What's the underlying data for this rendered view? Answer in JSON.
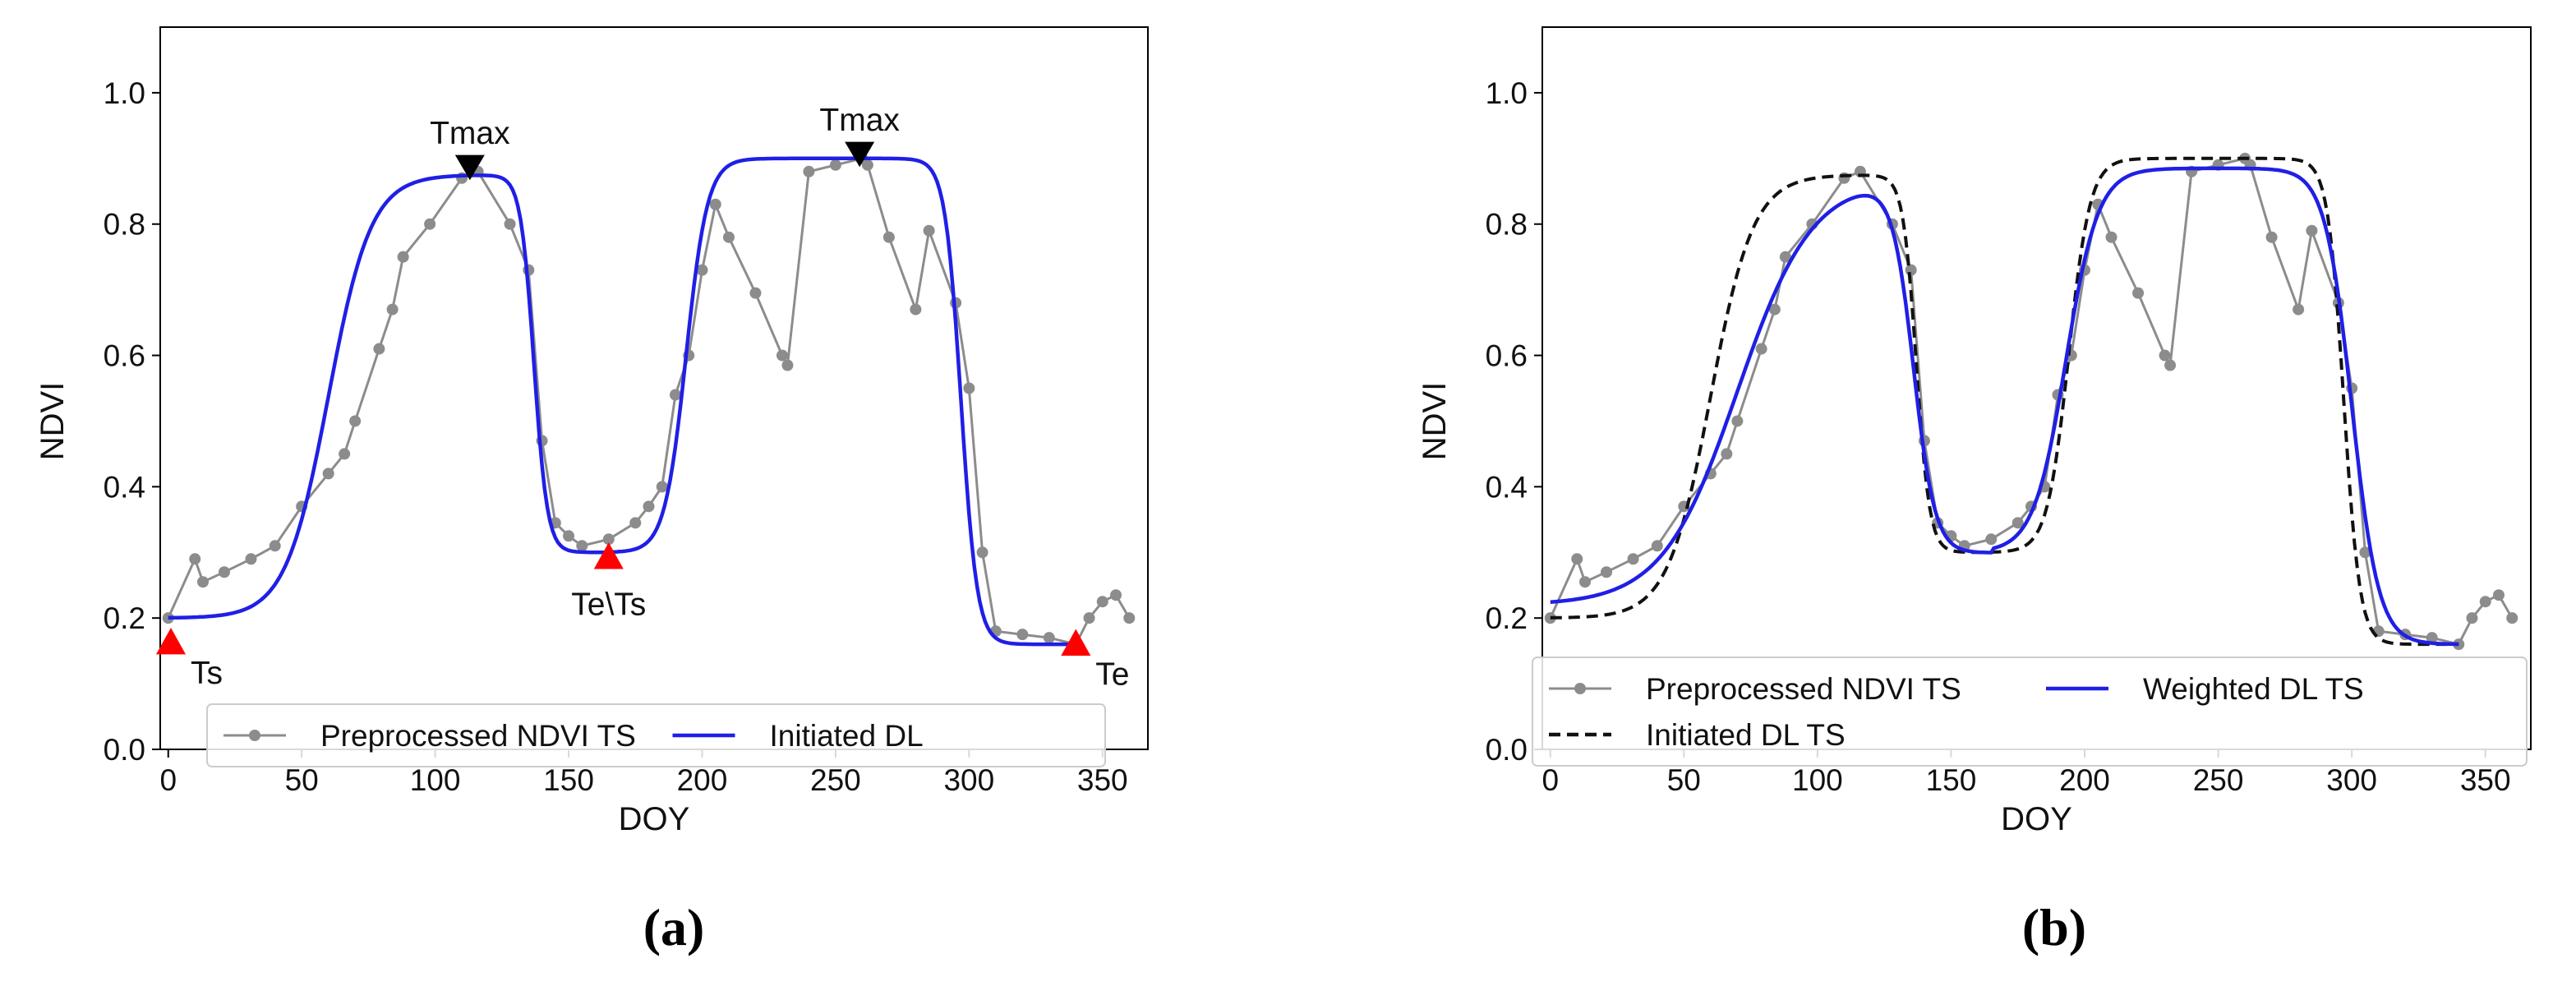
{
  "charts": [
    {
      "type": "line",
      "panel_label": "(a)",
      "xlabel": "DOY",
      "ylabel": "NDVI",
      "xlim": [
        -3,
        367
      ],
      "ylim": [
        0.0,
        1.1
      ],
      "xticks": [
        0,
        50,
        100,
        150,
        200,
        250,
        300,
        350
      ],
      "yticks": [
        0.0,
        0.2,
        0.4,
        0.6,
        0.8,
        1.0
      ],
      "ytick_labels": [
        "0.0",
        "0.2",
        "0.4",
        "0.6",
        "0.8",
        "1.0"
      ],
      "grid": false,
      "legend": {
        "placement": "bottom-center",
        "columns": 2
      },
      "series": [
        {
          "name": "Preprocessed NDVI TS",
          "style": "line-markers",
          "color": "#8c8c8c",
          "x": [
            0,
            10,
            13,
            21,
            31,
            40,
            50,
            60,
            66,
            70,
            79,
            84,
            88,
            98,
            110,
            116,
            128,
            135,
            140,
            145,
            150,
            155,
            165,
            175,
            180,
            185,
            190,
            195,
            200,
            205,
            210,
            220,
            230,
            232,
            240,
            250,
            260,
            262,
            270,
            280,
            285,
            295,
            300,
            305,
            310,
            320,
            330,
            340,
            345,
            350,
            355,
            360
          ],
          "y": [
            0.2,
            0.29,
            0.255,
            0.27,
            0.29,
            0.31,
            0.37,
            0.42,
            0.45,
            0.5,
            0.61,
            0.67,
            0.75,
            0.8,
            0.87,
            0.88,
            0.8,
            0.73,
            0.47,
            0.345,
            0.325,
            0.31,
            0.32,
            0.345,
            0.37,
            0.4,
            0.54,
            0.6,
            0.73,
            0.83,
            0.78,
            0.695,
            0.6,
            0.585,
            0.88,
            0.89,
            0.9,
            0.89,
            0.78,
            0.67,
            0.79,
            0.68,
            0.55,
            0.3,
            0.18,
            0.175,
            0.17,
            0.16,
            0.2,
            0.225,
            0.235,
            0.2
          ]
        },
        {
          "name": "Initiated DL",
          "style": "line",
          "color": "#1f1fe6",
          "model": {
            "vmin1": 0.2,
            "vmax1": 0.875,
            "m1": 60,
            "n1": 8,
            "m2": 137,
            "n2": 2.5,
            "vmin2": 0.3,
            "vmax2": 0.9,
            "m3": 194,
            "n3": 4,
            "m4": 297,
            "n4": 3,
            "vmin3": 0.16,
            "split": 165
          }
        }
      ],
      "annotations": [
        {
          "text": "Tmax",
          "x": 113,
          "y": 0.885,
          "marker": "down-triangle",
          "color": "#000000",
          "text_pos": "above"
        },
        {
          "text": "Tmax",
          "x": 259,
          "y": 0.905,
          "marker": "down-triangle",
          "color": "#000000",
          "text_pos": "above"
        },
        {
          "text": "Ts",
          "x": 1,
          "y": 0.165,
          "marker": "up-triangle",
          "color": "#ff0000",
          "text_pos": "right"
        },
        {
          "text": "Te\\Ts",
          "x": 165,
          "y": 0.295,
          "marker": "up-triangle",
          "color": "#ff0000",
          "text_pos": "below"
        },
        {
          "text": "Te",
          "x": 340,
          "y": 0.163,
          "marker": "up-triangle",
          "color": "#ff0000",
          "text_pos": "right"
        }
      ]
    },
    {
      "type": "line",
      "panel_label": "(b)",
      "xlabel": "DOY",
      "ylabel": "NDVI",
      "xlim": [
        -3,
        367
      ],
      "ylim": [
        0.0,
        1.1
      ],
      "xticks": [
        0,
        50,
        100,
        150,
        200,
        250,
        300,
        350
      ],
      "yticks": [
        0.0,
        0.2,
        0.4,
        0.6,
        0.8,
        1.0
      ],
      "ytick_labels": [
        "0.0",
        "0.2",
        "0.4",
        "0.6",
        "0.8",
        "1.0"
      ],
      "grid": false,
      "legend": {
        "placement": "bottom-left",
        "columns": 2
      },
      "series": [
        {
          "name": "Preprocessed NDVI TS",
          "style": "line-markers",
          "color": "#8c8c8c",
          "x": [
            0,
            10,
            13,
            21,
            31,
            40,
            50,
            60,
            66,
            70,
            79,
            84,
            88,
            98,
            110,
            116,
            128,
            135,
            140,
            145,
            150,
            155,
            165,
            175,
            180,
            185,
            190,
            195,
            200,
            205,
            210,
            220,
            230,
            232,
            240,
            250,
            260,
            262,
            270,
            280,
            285,
            295,
            300,
            305,
            310,
            320,
            330,
            340,
            345,
            350,
            355,
            360
          ],
          "y": [
            0.2,
            0.29,
            0.255,
            0.27,
            0.29,
            0.31,
            0.37,
            0.42,
            0.45,
            0.5,
            0.61,
            0.67,
            0.75,
            0.8,
            0.87,
            0.88,
            0.8,
            0.73,
            0.47,
            0.345,
            0.325,
            0.31,
            0.32,
            0.345,
            0.37,
            0.4,
            0.54,
            0.6,
            0.73,
            0.83,
            0.78,
            0.695,
            0.6,
            0.585,
            0.88,
            0.89,
            0.9,
            0.89,
            0.78,
            0.67,
            0.79,
            0.68,
            0.55,
            0.3,
            0.18,
            0.175,
            0.17,
            0.16,
            0.2,
            0.225,
            0.235,
            0.2
          ]
        },
        {
          "name": "Weighted DL TS",
          "style": "line",
          "color": "#1f1fe6",
          "model": {
            "vmin1": 0.22,
            "vmax1": 0.87,
            "m1": 70,
            "n1": 14,
            "m2": 136,
            "n2": 4,
            "vmin2": 0.3,
            "vmax2": 0.885,
            "m3": 193,
            "n3": 6,
            "m4": 300,
            "n4": 5,
            "vmin3": 0.16,
            "split": 165
          }
        },
        {
          "name": "Initiated DL TS",
          "style": "dashed",
          "color": "#111111",
          "model": {
            "vmin1": 0.2,
            "vmax1": 0.875,
            "m1": 60,
            "n1": 8,
            "m2": 137,
            "n2": 2.5,
            "vmin2": 0.3,
            "vmax2": 0.9,
            "m3": 194,
            "n3": 4,
            "m4": 297,
            "n4": 3,
            "vmin3": 0.16,
            "split": 165
          }
        }
      ],
      "annotations": []
    }
  ]
}
